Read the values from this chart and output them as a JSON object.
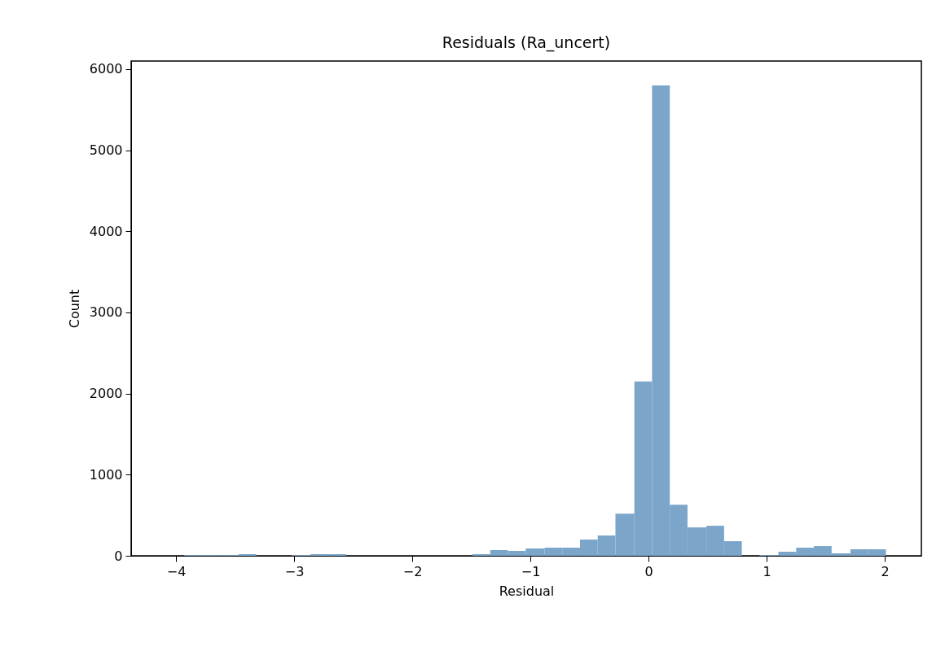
{
  "chart_data": {
    "type": "histogram",
    "title": "Residuals (Ra_uncert)",
    "xlabel": "Residual",
    "ylabel": "Count",
    "color": "#7ba6ca",
    "bins": [
      -3.93,
      -3.78,
      -3.63,
      -3.47,
      -3.32,
      -3.02,
      -2.86,
      -2.71,
      -2.56,
      -1.49,
      -1.34,
      -1.19,
      -1.04,
      -0.88,
      -0.73,
      -0.58,
      -0.43,
      -0.28,
      -0.12,
      0.03,
      0.18,
      0.33,
      0.49,
      0.64,
      0.79,
      0.94,
      1.1,
      1.25,
      1.4,
      1.55,
      1.71,
      1.86,
      2.01
    ],
    "values": [
      10,
      10,
      10,
      20,
      0,
      10,
      20,
      20,
      0,
      20,
      70,
      60,
      90,
      100,
      100,
      200,
      250,
      520,
      2150,
      5800,
      630,
      350,
      370,
      180,
      0,
      10,
      50,
      100,
      120,
      30,
      80,
      80
    ],
    "xlim": [
      -4.38,
      2.31
    ],
    "xticks": [
      -4,
      -3,
      -2,
      -1,
      0,
      1,
      2
    ],
    "ylim": [
      0,
      6100
    ],
    "yticks": [
      0,
      1000,
      2000,
      3000,
      4000,
      5000,
      6000
    ],
    "grid": false
  }
}
